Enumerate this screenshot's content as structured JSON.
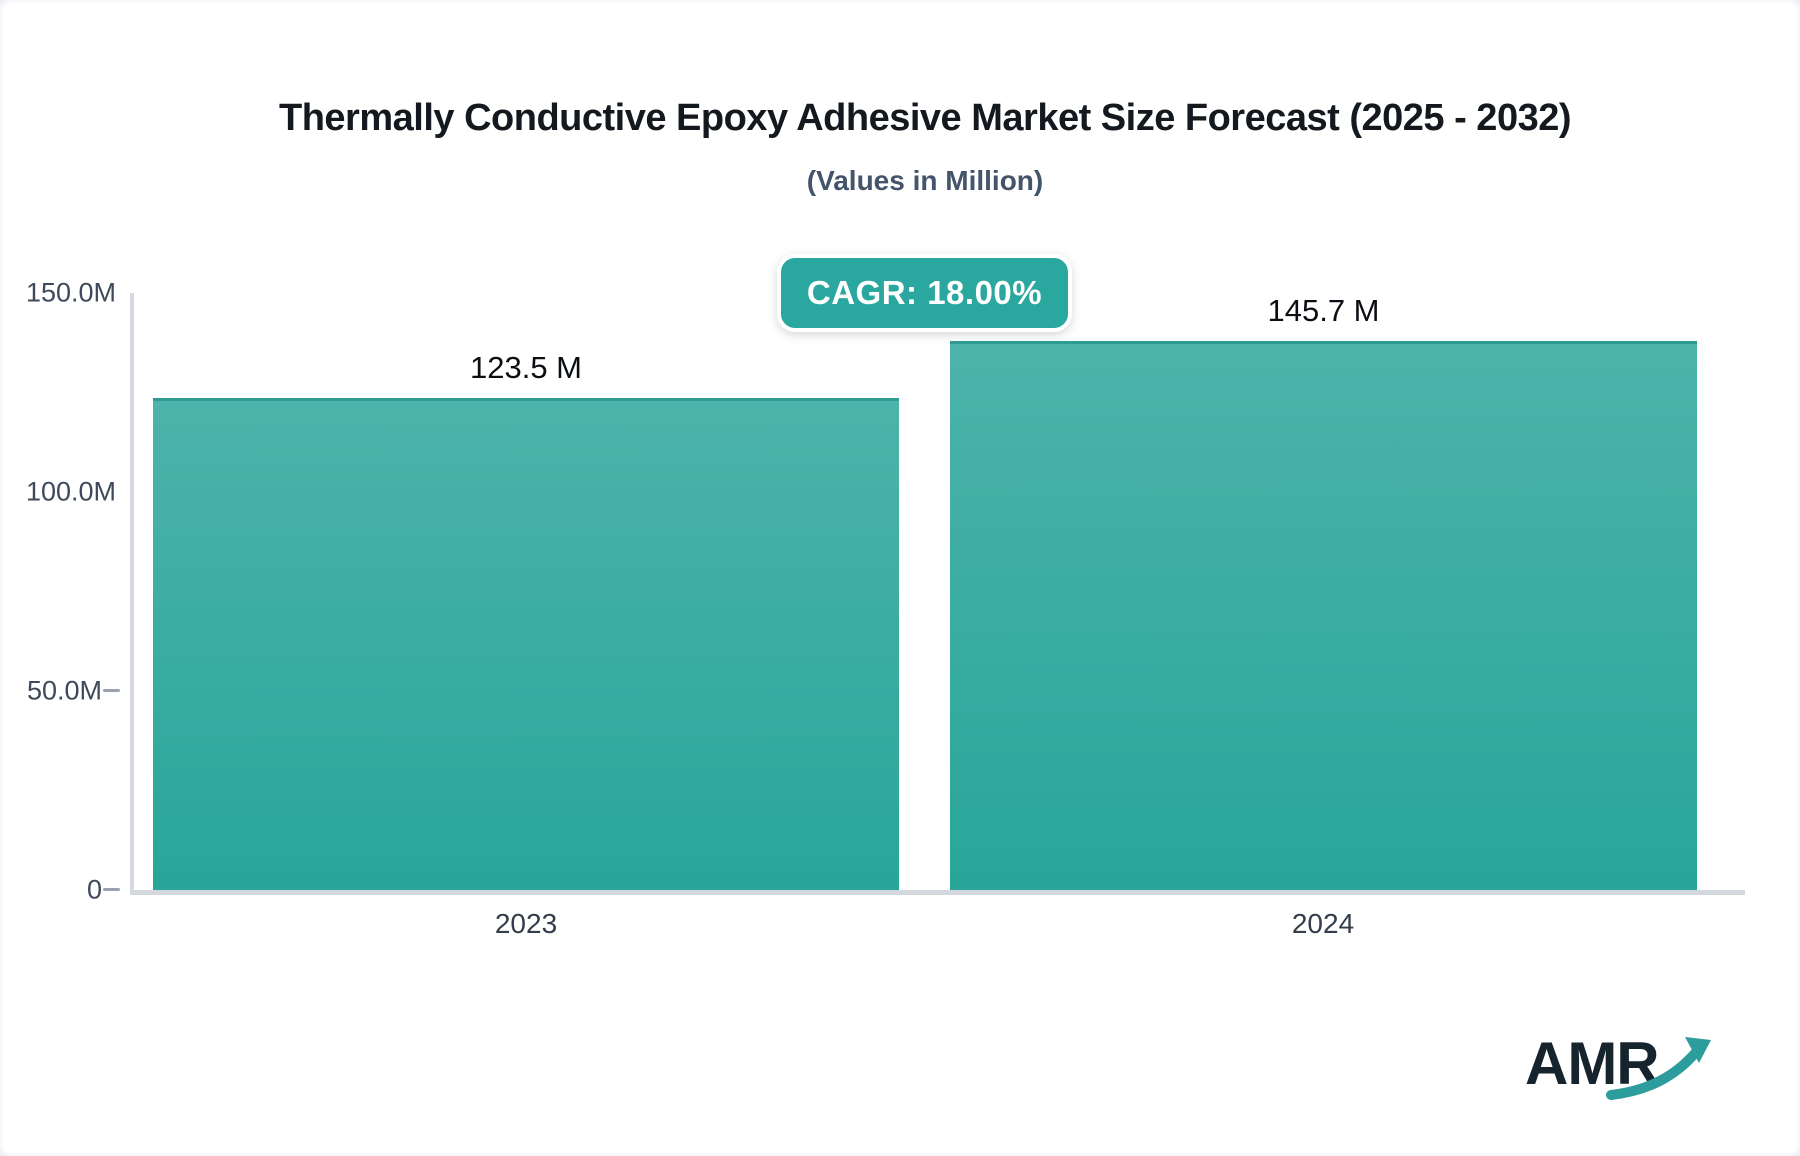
{
  "chart": {
    "title": "Thermally Conductive Epoxy Adhesive Market Size Forecast (2025 - 2032)",
    "subtitle": "(Values in Million)",
    "cagr_label": "CAGR: 18.00%"
  },
  "chart_data": {
    "type": "bar",
    "categories": [
      "2023",
      "2024"
    ],
    "values": [
      123.5,
      145.7
    ],
    "value_labels": [
      "123.5 M",
      "145.7 M"
    ],
    "title": "Thermally Conductive Epoxy Adhesive Market Size Forecast (2025 - 2032)",
    "subtitle": "(Values in Million)",
    "annotation": "CAGR: 18.00%",
    "ylabel": "",
    "xlabel": "",
    "ylim": [
      0,
      150
    ],
    "yticks": [
      "150.0M",
      "100.0M",
      "50.0M",
      "0"
    ],
    "grid": false,
    "legend": false,
    "colors": {
      "bar_gradient_top": "#4db3ab",
      "bar_gradient_bottom": "#28a69a",
      "bar_top_edge": "#2f9c94",
      "badge_background": "#2aa79e",
      "badge_text": "#ffffff",
      "axis_line": "#d4d7de",
      "tick_text": "#3e4a5b",
      "title_text": "#14181f",
      "subtitle_text": "#44546a"
    }
  },
  "logo": {
    "text": "AMR",
    "arrow_icon": "trend-up-arrow-icon",
    "text_color": "#16242e",
    "arrow_color": "#2d9c9c"
  }
}
